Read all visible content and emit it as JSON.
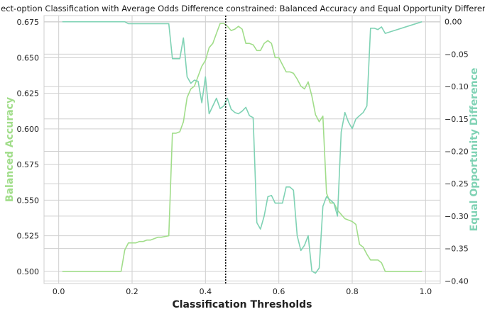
{
  "chart_data": {
    "type": "line",
    "title": "Reject-option Classification with Average Odds Difference constrained: Balanced Accuracy and Equal Opportunity Difference",
    "xlabel": "Classification Thresholds",
    "ylabel_left": "Balanced Accuracy",
    "ylabel_right": "Equal Opportunity Difference",
    "xlim": [
      -0.04,
      1.04
    ],
    "ylim_left": [
      0.4915,
      0.6795
    ],
    "ylim_right": [
      -0.404,
      0.0095
    ],
    "x_ticks": [
      0.0,
      0.2,
      0.4,
      0.6,
      0.8,
      1.0
    ],
    "x_tick_labels": [
      "0.0",
      "0.2",
      "0.4",
      "0.6",
      "0.8",
      "1.0"
    ],
    "y_left_ticks": [
      0.5,
      0.525,
      0.55,
      0.575,
      0.6,
      0.625,
      0.65,
      0.675
    ],
    "y_left_tick_labels": [
      "0.500",
      "0.525",
      "0.550",
      "0.575",
      "0.600",
      "0.625",
      "0.650",
      "0.675"
    ],
    "y_right_ticks": [
      0.0,
      -0.05,
      -0.1,
      -0.15,
      -0.2,
      -0.25,
      -0.3,
      -0.35,
      -0.4
    ],
    "y_right_tick_labels": [
      "0.00",
      "−0.05",
      "−0.10",
      "−0.15",
      "−0.20",
      "−0.25",
      "−0.30",
      "−0.35",
      "−0.40"
    ],
    "grid": true,
    "vline_x": 0.455,
    "colors": {
      "left_series": "#a1dd8a",
      "right_series": "#7fd2b4",
      "vline": "#111111",
      "grid": "#cfcfcf"
    },
    "series": [
      {
        "axis": "left",
        "x": [
          0.01,
          0.17,
          0.18,
          0.19,
          0.2,
          0.21,
          0.22,
          0.23,
          0.24,
          0.25,
          0.26,
          0.27,
          0.28,
          0.3,
          0.31,
          0.32,
          0.33,
          0.34,
          0.35,
          0.36,
          0.37,
          0.38,
          0.39,
          0.4,
          0.41,
          0.42,
          0.43,
          0.44,
          0.45,
          0.46,
          0.47,
          0.48,
          0.49,
          0.5,
          0.51,
          0.52,
          0.53,
          0.54,
          0.55,
          0.56,
          0.57,
          0.58,
          0.59,
          0.6,
          0.61,
          0.62,
          0.63,
          0.64,
          0.65,
          0.66,
          0.67,
          0.68,
          0.69,
          0.7,
          0.71,
          0.72,
          0.73,
          0.74,
          0.75,
          0.76,
          0.77,
          0.78,
          0.79,
          0.8,
          0.81,
          0.82,
          0.83,
          0.84,
          0.85,
          0.86,
          0.87,
          0.88,
          0.89,
          0.99
        ],
        "y": [
          0.5,
          0.5,
          0.515,
          0.52,
          0.52,
          0.52,
          0.521,
          0.521,
          0.522,
          0.522,
          0.523,
          0.524,
          0.524,
          0.525,
          0.597,
          0.597,
          0.598,
          0.605,
          0.622,
          0.628,
          0.63,
          0.637,
          0.644,
          0.648,
          0.657,
          0.66,
          0.667,
          0.674,
          0.674,
          0.672,
          0.669,
          0.67,
          0.672,
          0.67,
          0.66,
          0.66,
          0.659,
          0.655,
          0.655,
          0.66,
          0.662,
          0.66,
          0.65,
          0.65,
          0.645,
          0.64,
          0.64,
          0.639,
          0.635,
          0.63,
          0.628,
          0.633,
          0.623,
          0.61,
          0.605,
          0.609,
          0.555,
          0.548,
          0.548,
          0.543,
          0.54,
          0.537,
          0.536,
          0.535,
          0.533,
          0.519,
          0.517,
          0.512,
          0.508,
          0.508,
          0.508,
          0.506,
          0.5,
          0.5
        ]
      },
      {
        "axis": "right",
        "x": [
          0.01,
          0.18,
          0.19,
          0.2,
          0.29,
          0.3,
          0.31,
          0.32,
          0.33,
          0.34,
          0.35,
          0.36,
          0.37,
          0.38,
          0.39,
          0.4,
          0.41,
          0.42,
          0.43,
          0.44,
          0.45,
          0.46,
          0.47,
          0.48,
          0.49,
          0.5,
          0.51,
          0.52,
          0.53,
          0.54,
          0.55,
          0.56,
          0.57,
          0.58,
          0.59,
          0.6,
          0.61,
          0.62,
          0.63,
          0.64,
          0.65,
          0.66,
          0.67,
          0.68,
          0.69,
          0.7,
          0.71,
          0.72,
          0.73,
          0.74,
          0.75,
          0.76,
          0.77,
          0.78,
          0.79,
          0.8,
          0.81,
          0.82,
          0.83,
          0.84,
          0.85,
          0.86,
          0.87,
          0.88,
          0.89,
          0.99
        ],
        "y": [
          0.0,
          0.0,
          -0.003,
          -0.003,
          -0.003,
          -0.003,
          -0.057,
          -0.057,
          -0.057,
          -0.025,
          -0.085,
          -0.095,
          -0.09,
          -0.092,
          -0.125,
          -0.085,
          -0.142,
          -0.13,
          -0.118,
          -0.134,
          -0.13,
          -0.118,
          -0.135,
          -0.14,
          -0.142,
          -0.138,
          -0.132,
          -0.145,
          -0.148,
          -0.31,
          -0.32,
          -0.3,
          -0.27,
          -0.268,
          -0.28,
          -0.28,
          -0.28,
          -0.255,
          -0.255,
          -0.26,
          -0.33,
          -0.353,
          -0.345,
          -0.33,
          -0.385,
          -0.388,
          -0.38,
          -0.285,
          -0.27,
          -0.275,
          -0.28,
          -0.3,
          -0.17,
          -0.14,
          -0.155,
          -0.165,
          -0.15,
          -0.145,
          -0.14,
          -0.13,
          -0.01,
          -0.01,
          -0.012,
          -0.008,
          -0.018,
          0.0
        ]
      }
    ]
  }
}
